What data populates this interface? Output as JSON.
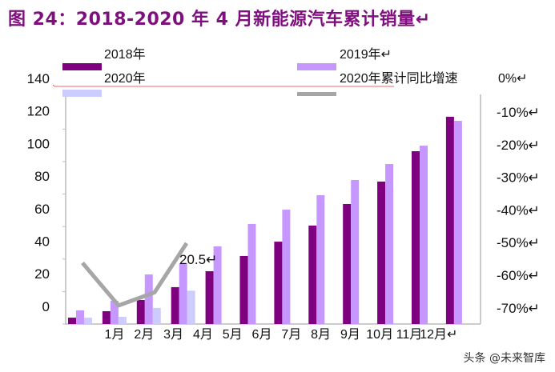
{
  "title": "图 24：2018-2020 年 4 月新能源汽车累计销量↵",
  "watermark": "头条 @未来智库",
  "chart_data": {
    "type": "bar",
    "title": "图 24：2018-2020 年 4 月新能源汽车累计销量",
    "categories": [
      "1月",
      "2月",
      "3月",
      "4月",
      "5月",
      "6月",
      "7月",
      "8月",
      "9月",
      "10月",
      "11月",
      "12月↵"
    ],
    "left_ticks": [
      "140",
      "120",
      "100",
      "80",
      "60",
      "40",
      "20",
      "0"
    ],
    "right_ticks": [
      "0%↵",
      "-10%↵",
      "-20%↵",
      "-30%↵",
      "-40%↵",
      "-50%↵",
      "-60%↵",
      "-70%↵"
    ],
    "ylim": [
      0,
      140
    ],
    "y2lim": [
      -70,
      0
    ],
    "grid": false,
    "legend": "top",
    "series": [
      {
        "name": "2018年",
        "type": "bar",
        "color": "#7f007f",
        "values": [
          3.9,
          7.9,
          14.8,
          22.7,
          32.5,
          41.9,
          50.7,
          60.6,
          73.9,
          87.7,
          106.4,
          127.6
        ]
      },
      {
        "name": "2019年↵",
        "type": "bar",
        "color": "#c698ff",
        "values": [
          8.4,
          14.3,
          30.5,
          37.4,
          47.8,
          61.6,
          70.4,
          79.3,
          88.7,
          98.5,
          109.8,
          125.1
        ]
      },
      {
        "name": "2020年",
        "type": "bar",
        "color": "#ccccff",
        "values": [
          3.9,
          4.4,
          9.9,
          20.5,
          null,
          null,
          null,
          null,
          null,
          null,
          null,
          null
        ]
      },
      {
        "name": "2020年累计同比增速",
        "type": "line",
        "axis": "right",
        "color": "#a6a6a6",
        "values": [
          -56,
          -69,
          -65,
          -50,
          null,
          null,
          null,
          null,
          null,
          null,
          null,
          null
        ]
      }
    ],
    "annotations": [
      {
        "text": "20.5↵",
        "category": "4月",
        "series": "2020年"
      }
    ]
  }
}
